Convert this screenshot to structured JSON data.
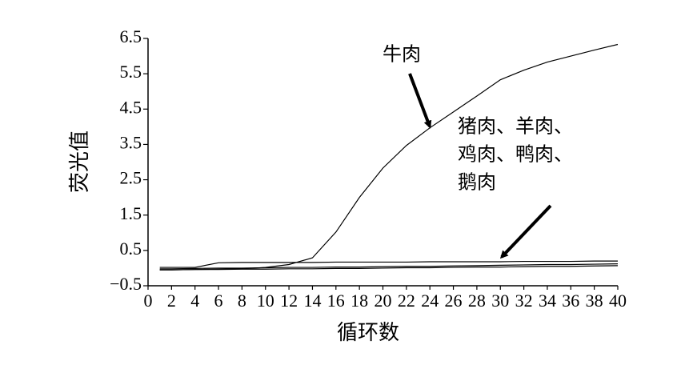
{
  "chart_data": {
    "type": "line",
    "x_label": "循环数",
    "y_label": "荧光值",
    "x": [
      1,
      2,
      4,
      6,
      8,
      10,
      12,
      14,
      16,
      18,
      20,
      22,
      24,
      26,
      28,
      30,
      32,
      34,
      36,
      38,
      40
    ],
    "series": [
      {
        "color": "#000000",
        "values": [
          -0.05,
          -0.05,
          -0.04,
          -0.03,
          -0.02,
          0.02,
          0.1,
          0.29,
          1.02,
          2.0,
          2.83,
          3.47,
          3.97,
          4.42,
          4.87,
          5.33,
          5.6,
          5.83,
          6.0,
          6.17,
          6.33
        ]
      },
      {
        "color": "#000000",
        "values": [
          0.02,
          0.02,
          0.02,
          0.15,
          0.16,
          0.16,
          0.16,
          0.16,
          0.17,
          0.17,
          0.17,
          0.17,
          0.18,
          0.18,
          0.18,
          0.18,
          0.19,
          0.19,
          0.19,
          0.2,
          0.2
        ]
      },
      {
        "color": "#000000",
        "values": [
          -0.02,
          -0.02,
          -0.01,
          0.0,
          0.0,
          0.01,
          0.02,
          0.02,
          0.03,
          0.03,
          0.04,
          0.05,
          0.05,
          0.06,
          0.07,
          0.08,
          0.09,
          0.1,
          0.1,
          0.11,
          0.12
        ]
      },
      {
        "color": "#000000",
        "values": [
          -0.05,
          -0.05,
          -0.04,
          -0.04,
          -0.03,
          -0.03,
          -0.02,
          -0.02,
          -0.01,
          -0.01,
          0.0,
          0.01,
          0.01,
          0.02,
          0.03,
          0.03,
          0.04,
          0.05,
          0.05,
          0.06,
          0.07
        ]
      }
    ],
    "xlim": [
      0,
      40
    ],
    "xticks": [
      0,
      2,
      4,
      6,
      8,
      10,
      12,
      14,
      16,
      18,
      20,
      22,
      24,
      26,
      28,
      30,
      32,
      34,
      36,
      38,
      40
    ],
    "ylim": [
      -0.5,
      6.5
    ],
    "yticks": [
      {
        "value": -0.5,
        "label": "−0.5"
      },
      0.5,
      1.5,
      2.5,
      3.5,
      4.5,
      5.5,
      6.5
    ],
    "annotations": [
      {
        "lines": [
          "牛肉"
        ]
      },
      {
        "lines": [
          "猪肉、羊肉、",
          "鸡肉、鸭肉、",
          "鹅肉"
        ]
      }
    ]
  }
}
